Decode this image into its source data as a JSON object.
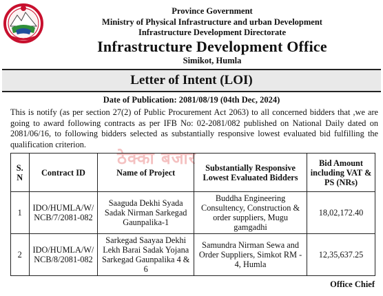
{
  "header": {
    "line1": "Province Government",
    "line2": "Ministry of Physical Infrastructure and urban Development",
    "line3": "Infrastructure Development Directorate",
    "office": "Infrastructure Development Office",
    "location": "Simikot, Humla"
  },
  "notice": {
    "title": "Letter of Intent (LOI)",
    "publication_date": "Date of Publication: 2081/08/19 (04th Dec, 2024)",
    "body": "This is notify (as per section 27(2) of Public Procurement Act 2063) to all concerned bidders that ,we are going to award following contracts as per IFB No: 02-2081/082 published on  National Daily  dated  on 2081/06/16, to following bidders selected as substantially responsive lowest evaluated bid fulfilling the qualification criterion."
  },
  "watermark": "ठेक्का बजार",
  "table": {
    "headers": [
      "S. N",
      "Contract ID",
      "Name of Project",
      "Substantially Responsive Lowest Evaluated Bidders",
      "Bid Amount including VAT & PS (NRs)"
    ],
    "rows": [
      {
        "sn": "1",
        "contract_id": "IDO/HUMLA/W/ NCB/7/2081-082",
        "project": "Saaguda Dekhi Syada Sadak Nirman Sarkegad Gaunpalika-1",
        "bidder": "Buddha Engineering Consultency, Construction & order suppliers, Mugu gamgadhi",
        "amount": "18,02,172.40"
      },
      {
        "sn": "2",
        "contract_id": "IDO/HUMLA/W/ NCB/8/2081-082",
        "project": "Sarkegad Saayaa Dekhi Lekh Barai Sadak Yojana Sarkegad Gaunpalika 4 & 6",
        "bidder": "Samundra Nirman Sewa and Order Suppliers, Simkot RM - 4, Humla",
        "amount": "12,35,637.25"
      }
    ]
  },
  "footer": {
    "signatory": "Office Chief"
  },
  "colors": {
    "emblem_red": "#c8102e",
    "emblem_blue": "#1f4e9c",
    "title_bar": "#e9e9e9"
  }
}
